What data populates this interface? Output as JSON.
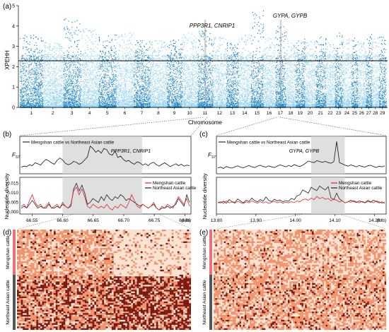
{
  "panels": {
    "a": "(a)",
    "b": "(b)",
    "c": "(c)",
    "d": "(d)",
    "e": "(e)"
  },
  "colors": {
    "dark_blue": "#1f86c4",
    "light_blue": "#8fd0f0",
    "threshold_line": "#000000",
    "highlight": "#c8c8c8",
    "mengshan": "#e0242b",
    "northeast": "#222222",
    "heat_low": "#fbe3d4",
    "heat_mid": "#f3936b",
    "heat_high": "#7b1a12",
    "bar_mengshan": "#ef6f73",
    "bar_northeast": "#555555"
  },
  "chart_data": [
    {
      "id": "a",
      "type": "scatter",
      "title": "",
      "ylabel": "XPEHH",
      "xlabel": "Chromosome",
      "ylim": [
        0,
        5
      ],
      "yticks": [
        "0",
        "1",
        "2",
        "3",
        "4",
        "5"
      ],
      "threshold": 2.3,
      "categories": [
        "1",
        "2",
        "3",
        "4",
        "5",
        "6",
        "7",
        "8",
        "9",
        "10",
        "11",
        "12",
        "13",
        "14",
        "15",
        "16",
        "17",
        "18",
        "19",
        "20",
        "21",
        "22",
        "23",
        "24",
        "25",
        "26",
        "27",
        "28",
        "29"
      ],
      "chrom_weights": [
        158,
        137,
        121,
        121,
        121,
        119,
        113,
        113,
        105,
        104,
        107,
        91,
        84,
        84,
        85,
        81,
        73,
        66,
        64,
        72,
        71,
        61,
        52,
        63,
        43,
        52,
        45,
        46,
        51
      ],
      "chrom_peaks": [
        3.6,
        3.2,
        4.4,
        3.9,
        3.6,
        3.8,
        3.3,
        3.3,
        3.4,
        3.7,
        3.8,
        3.5,
        3.2,
        3.6,
        4.8,
        3.5,
        4.0,
        3.3,
        3.4,
        3.3,
        3.5,
        3.2,
        3.7,
        3.4,
        3.5,
        3.2,
        3.6,
        3.5,
        3.5
      ],
      "annotations": [
        {
          "label": "PPP3R1, CNRIP1",
          "chromosome": "11"
        },
        {
          "label": "GYPA, GYPB",
          "chromosome": "17"
        }
      ]
    },
    {
      "id": "b-fst",
      "type": "line",
      "ylabel": "F",
      "ylabel_sub": "ST",
      "legend": "Mengshan cattle vs Northeast Asian cattle",
      "gene_label": "PPP3R1, CNRIP1",
      "x_range": [
        66.53,
        66.81
      ],
      "highlight": [
        66.6,
        66.73
      ],
      "fst": [
        0.11,
        0.13,
        0.12,
        0.16,
        0.14,
        0.2,
        0.18,
        0.15,
        0.22,
        0.27,
        0.24,
        0.2,
        0.17,
        0.25,
        0.3,
        0.26,
        0.19,
        0.16,
        0.18,
        0.23,
        0.21,
        0.17,
        0.2,
        0.26,
        0.32,
        0.55,
        0.5,
        0.42,
        0.46,
        0.4,
        0.5,
        0.47,
        0.38,
        0.36,
        0.45,
        0.31,
        0.34,
        0.27,
        0.23,
        0.25,
        0.2,
        0.17,
        0.22,
        0.2,
        0.15,
        0.18,
        0.14,
        0.19,
        0.21,
        0.16,
        0.13,
        0.17,
        0.2,
        0.16,
        0.12,
        0.15,
        0.18,
        0.14,
        0.17,
        0.13,
        0.15,
        0.14
      ]
    },
    {
      "id": "b-pi",
      "type": "line",
      "ylabel": "Nucleotide diversity",
      "yticks": [
        "0.000",
        "0.005",
        "0.010",
        "0.015"
      ],
      "ylim": [
        0,
        0.017
      ],
      "x_range": [
        66.53,
        66.81
      ],
      "xticks": [
        "66.55",
        "66.60",
        "66.65",
        "66.70",
        "66.75",
        "66.80"
      ],
      "xunit": "(Mb)",
      "highlight": [
        66.6,
        66.73
      ],
      "series": [
        {
          "name": "Mengshan cattle",
          "values": [
            0.003,
            0.004,
            0.002,
            0.006,
            0.009,
            0.005,
            0.003,
            0.004,
            0.002,
            0.003,
            0.005,
            0.002,
            0.003,
            0.004,
            0.002,
            0.005,
            0.003,
            0.002,
            0.004,
            0.011,
            0.013,
            0.009,
            0.012,
            0.008,
            0.003,
            0.002,
            0.004,
            0.003,
            0.002,
            0.003,
            0.002,
            0.004,
            0.002,
            0.001,
            0.003,
            0.002,
            0.004,
            0.003,
            0.002,
            0.005,
            0.009,
            0.006,
            0.003,
            0.002,
            0.004,
            0.003,
            0.002,
            0.003,
            0.005,
            0.002,
            0.001,
            0.003,
            0.002,
            0.004,
            0.003,
            0.002,
            0.005,
            0.008,
            0.006,
            0.004,
            0.007,
            0.003
          ]
        },
        {
          "name": "Northeast Asian cattle",
          "values": [
            0.002,
            0.003,
            0.002,
            0.004,
            0.006,
            0.004,
            0.002,
            0.003,
            0.002,
            0.002,
            0.004,
            0.002,
            0.002,
            0.003,
            0.002,
            0.004,
            0.003,
            0.002,
            0.003,
            0.012,
            0.015,
            0.011,
            0.014,
            0.01,
            0.004,
            0.005,
            0.007,
            0.006,
            0.005,
            0.008,
            0.006,
            0.009,
            0.007,
            0.006,
            0.008,
            0.007,
            0.009,
            0.008,
            0.006,
            0.007,
            0.006,
            0.005,
            0.004,
            0.003,
            0.004,
            0.003,
            0.002,
            0.003,
            0.004,
            0.002,
            0.001,
            0.002,
            0.002,
            0.003,
            0.002,
            0.003,
            0.004,
            0.007,
            0.005,
            0.003,
            0.009,
            0.005
          ]
        }
      ]
    },
    {
      "id": "c-fst",
      "type": "line",
      "ylabel": "F",
      "ylabel_sub": "ST",
      "legend": "Mengshan cattle vs Northeast Asian cattle",
      "gene_label": "GYPA, GYPB",
      "x_range": [
        13.8,
        14.23
      ],
      "highlight": [
        14.04,
        14.125
      ],
      "fst": [
        0.14,
        0.16,
        0.12,
        0.18,
        0.15,
        0.13,
        0.17,
        0.2,
        0.16,
        0.14,
        0.18,
        0.21,
        0.17,
        0.15,
        0.19,
        0.22,
        0.18,
        0.16,
        0.2,
        0.17,
        0.15,
        0.19,
        0.23,
        0.2,
        0.17,
        0.21,
        0.18,
        0.24,
        0.2,
        0.18,
        0.22,
        0.28,
        0.35,
        0.32,
        0.3,
        0.36,
        0.33,
        0.31,
        0.34,
        0.3,
        0.28,
        0.33,
        0.95,
        0.3,
        0.26,
        0.22,
        0.19,
        0.23,
        0.2,
        0.17,
        0.21,
        0.18,
        0.16,
        0.2,
        0.22,
        0.18,
        0.15,
        0.19,
        0.17,
        0.2
      ]
    },
    {
      "id": "c-pi",
      "type": "line",
      "ylabel": "Nucleotide diversity",
      "x_range": [
        13.8,
        14.23
      ],
      "xticks": [
        "13.80",
        "13.90",
        "14.00",
        "14.10",
        "14.20"
      ],
      "xunit": "(Mb)",
      "highlight": [
        14.04,
        14.125
      ],
      "series": [
        {
          "name": "Mengshan cattle",
          "values": [
            0.3,
            0.34,
            0.28,
            0.36,
            0.3,
            0.33,
            0.29,
            0.35,
            0.31,
            0.28,
            0.33,
            0.3,
            0.36,
            0.32,
            0.29,
            0.34,
            0.3,
            0.33,
            0.28,
            0.32,
            0.35,
            0.3,
            0.33,
            0.29,
            0.32,
            0.3,
            0.34,
            0.31,
            0.36,
            0.33,
            0.4,
            0.42,
            0.38,
            0.45,
            0.4,
            0.5,
            0.43,
            0.47,
            0.41,
            0.44,
            0.36,
            0.42,
            0.38,
            0.33,
            0.36,
            0.3,
            0.34,
            0.32,
            0.37,
            0.33,
            0.3,
            0.35,
            0.31,
            0.38,
            0.34,
            0.3,
            0.36,
            0.33,
            0.29,
            0.32
          ]
        },
        {
          "name": "Northeast Asian cattle",
          "values": [
            0.32,
            0.3,
            0.35,
            0.29,
            0.4,
            0.34,
            0.31,
            0.42,
            0.36,
            0.3,
            0.38,
            0.34,
            0.45,
            0.37,
            0.33,
            0.4,
            0.35,
            0.48,
            0.38,
            0.34,
            0.41,
            0.36,
            0.39,
            0.33,
            0.37,
            0.35,
            0.44,
            0.4,
            0.52,
            0.55,
            0.7,
            0.65,
            0.6,
            0.78,
            0.72,
            0.68,
            0.82,
            0.75,
            0.7,
            0.8,
            0.45,
            0.4,
            0.6,
            0.42,
            0.36,
            0.3,
            0.33,
            0.38,
            0.34,
            0.31,
            0.36,
            0.33,
            0.3,
            0.35,
            0.32,
            0.38,
            0.34,
            0.3,
            0.33,
            0.29
          ]
        }
      ]
    },
    {
      "id": "d",
      "type": "heatmap",
      "groups": [
        "Mengshan cattle",
        "Northeast Asian cattle"
      ],
      "group_split": 0.45
    },
    {
      "id": "e",
      "type": "heatmap",
      "groups": [
        "Mengshan cattle",
        "Northeast Asian cattle"
      ],
      "group_split": 0.45
    }
  ]
}
